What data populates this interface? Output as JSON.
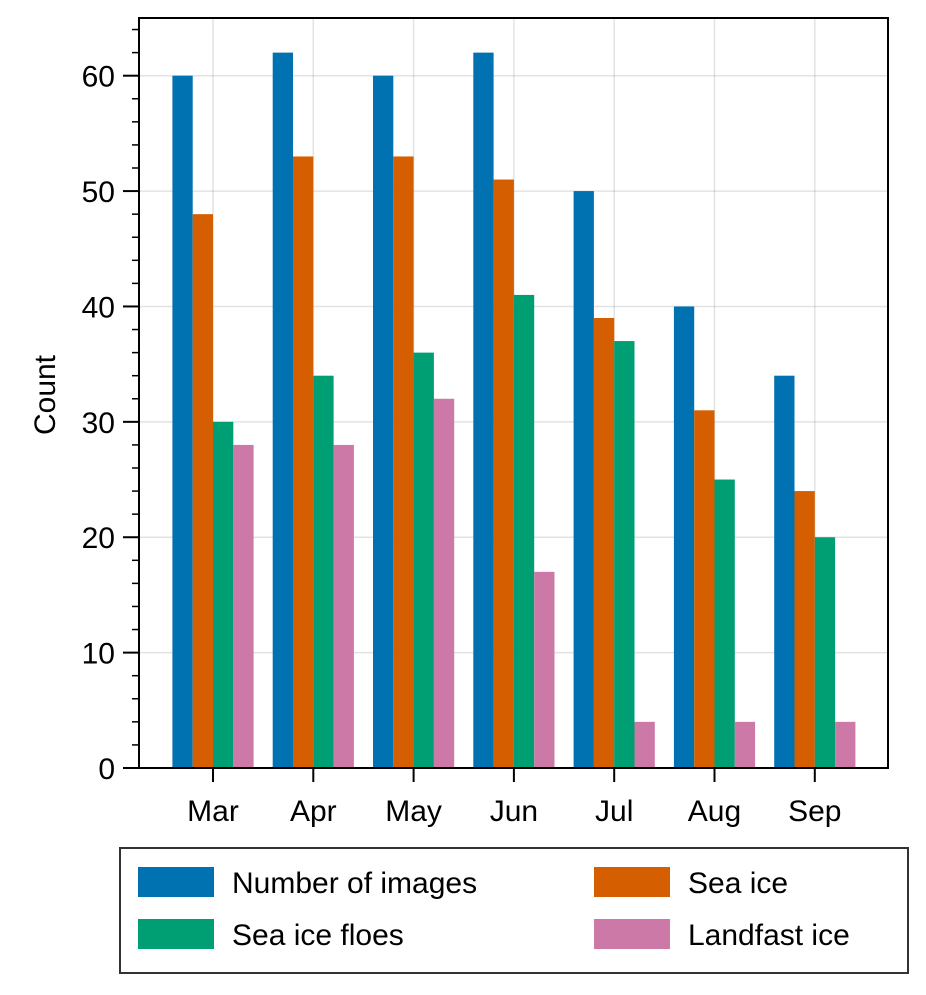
{
  "chart_data": {
    "type": "bar",
    "title": "",
    "xlabel": "",
    "ylabel": "Count",
    "categories": [
      "Mar",
      "Apr",
      "May",
      "Jun",
      "Jul",
      "Aug",
      "Sep"
    ],
    "ylim": [
      0,
      65
    ],
    "yticks": [
      0,
      10,
      20,
      30,
      40,
      50,
      60
    ],
    "grid": true,
    "legend_position": "bottom",
    "series": [
      {
        "name": "Number of images",
        "color": "#0072b2",
        "values": [
          60,
          62,
          60,
          62,
          50,
          40,
          34
        ]
      },
      {
        "name": "Sea ice",
        "color": "#d55e00",
        "values": [
          48,
          53,
          53,
          51,
          39,
          31,
          24
        ]
      },
      {
        "name": "Sea ice floes",
        "color": "#009e73",
        "values": [
          30,
          34,
          36,
          41,
          37,
          25,
          20
        ]
      },
      {
        "name": "Landfast ice",
        "color": "#cc79a7",
        "values": [
          28,
          28,
          32,
          17,
          4,
          4,
          4
        ]
      }
    ]
  }
}
